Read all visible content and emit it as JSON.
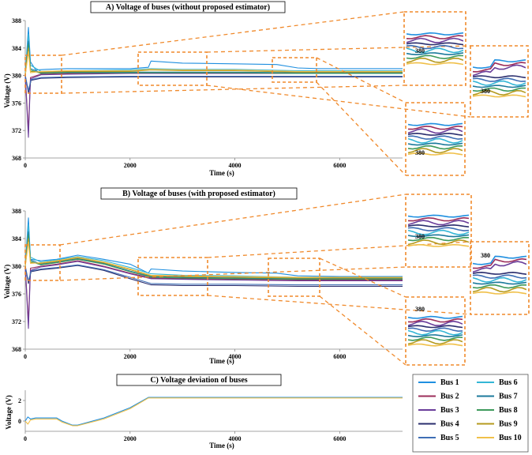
{
  "chart_data": [
    {
      "type": "line",
      "title": "A) Voltage of buses (without proposed estimator)",
      "xlabel": "Time (s)",
      "ylabel": "Voltage (V)",
      "xlim": [
        0,
        7200
      ],
      "ylim": [
        368,
        388
      ],
      "xticks": [
        "0",
        "2000",
        "4000",
        "6000"
      ],
      "yticks": [
        "368",
        "372",
        "376",
        "380",
        "384",
        "388"
      ],
      "inset_labels": [
        "380",
        "380",
        "380"
      ],
      "grid": false,
      "series": [
        {
          "name": "Bus 1",
          "color": "#1f8fe0",
          "x": [
            0,
            60,
            100,
            200,
            400,
            800,
            2000,
            2350,
            2400,
            3000,
            4000,
            4800,
            5200,
            5600,
            7200
          ],
          "y": [
            380,
            387,
            382,
            380.8,
            380.9,
            381,
            381,
            381.2,
            382.1,
            381.8,
            381.7,
            381.6,
            381.1,
            381,
            381
          ]
        },
        {
          "name": "Bus 2",
          "color": "#9b2d5a",
          "x": [
            0,
            60,
            100,
            300,
            800,
            2000,
            3000,
            4000,
            5200,
            7200
          ],
          "y": [
            380,
            372,
            379.7,
            380.2,
            380.3,
            380.4,
            380.4,
            380.4,
            380.4,
            380.4
          ]
        },
        {
          "name": "Bus 3",
          "color": "#6a3d9a",
          "x": [
            0,
            60,
            100,
            300,
            800,
            2000,
            3000,
            4000,
            5200,
            7200
          ],
          "y": [
            380,
            371,
            379.5,
            380.1,
            380.2,
            380.3,
            380.3,
            380.3,
            380.3,
            380.3
          ]
        },
        {
          "name": "Bus 4",
          "color": "#2b2e6e",
          "x": [
            0,
            60,
            110,
            300,
            800,
            2000,
            3000,
            4000,
            5200,
            7200
          ],
          "y": [
            380,
            377.5,
            379.3,
            379.6,
            379.7,
            379.8,
            379.8,
            379.8,
            379.8,
            379.8
          ]
        },
        {
          "name": "Bus 5",
          "color": "#3f6fb5",
          "x": [
            0,
            60,
            110,
            300,
            800,
            2000,
            3000,
            4000,
            5200,
            7200
          ],
          "y": [
            380,
            377.8,
            379.4,
            379.7,
            379.8,
            379.9,
            379.9,
            379.9,
            379.9,
            379.9
          ]
        },
        {
          "name": "Bus 6",
          "color": "#33b6d6",
          "x": [
            0,
            60,
            100,
            300,
            800,
            2000,
            2400,
            3000,
            4000,
            5200,
            7200
          ],
          "y": [
            380,
            386,
            381.5,
            380.6,
            380.7,
            380.8,
            381,
            380.9,
            380.9,
            380.7,
            380.7
          ]
        },
        {
          "name": "Bus 7",
          "color": "#1c7a9b",
          "x": [
            0,
            60,
            100,
            300,
            800,
            2000,
            3000,
            4000,
            5200,
            7200
          ],
          "y": [
            380,
            385,
            381,
            380.4,
            380.5,
            380.5,
            380.5,
            380.5,
            380.4,
            380.4
          ]
        },
        {
          "name": "Bus 8",
          "color": "#3e9a5c",
          "x": [
            0,
            60,
            100,
            300,
            800,
            2000,
            3000,
            4000,
            5200,
            7200
          ],
          "y": [
            380,
            384.5,
            380.8,
            380.3,
            380.4,
            380.4,
            380.4,
            380.4,
            380.3,
            380.3
          ]
        },
        {
          "name": "Bus 9",
          "color": "#b59a1f",
          "x": [
            0,
            60,
            100,
            300,
            800,
            2000,
            2400,
            3000,
            4000,
            5200,
            7200
          ],
          "y": [
            380,
            384,
            380.6,
            380.5,
            380.6,
            380.6,
            380.8,
            380.7,
            380.7,
            380.5,
            380.5
          ]
        },
        {
          "name": "Bus 10",
          "color": "#f0c04a",
          "x": [
            0,
            60,
            100,
            300,
            800,
            2000,
            2400,
            3000,
            4000,
            5200,
            7200
          ],
          "y": [
            380,
            383.5,
            380.4,
            380.6,
            380.7,
            380.7,
            380.9,
            380.8,
            380.8,
            380.6,
            380.6
          ]
        }
      ]
    },
    {
      "type": "line",
      "title": "B) Voltage of buses (with proposed estimator)",
      "xlabel": "Time (s)",
      "ylabel": "Voltage (V)",
      "xlim": [
        0,
        7200
      ],
      "ylim": [
        368,
        388
      ],
      "xticks": [
        "0",
        "2000",
        "4000",
        "6000"
      ],
      "yticks": [
        "368",
        "372",
        "376",
        "380",
        "384",
        "388"
      ],
      "inset_labels": [
        "380",
        "380",
        "380"
      ],
      "grid": false,
      "series": [
        {
          "name": "Bus 1",
          "color": "#1f8fe0",
          "x": [
            0,
            60,
            100,
            300,
            600,
            1000,
            1500,
            2000,
            2350,
            2400,
            3000,
            4000,
            4800,
            5200,
            6000,
            7200
          ],
          "y": [
            380,
            387,
            381,
            380.8,
            381,
            381.6,
            381,
            380.3,
            379,
            379.6,
            379.3,
            379.1,
            379,
            378.6,
            378.5,
            378.5
          ]
        },
        {
          "name": "Bus 2",
          "color": "#9b2d5a",
          "x": [
            0,
            60,
            100,
            300,
            600,
            1000,
            1500,
            2000,
            2400,
            3000,
            4000,
            5200,
            7200
          ],
          "y": [
            380,
            372,
            379.7,
            380,
            380.3,
            380.8,
            380,
            379,
            378.3,
            378.2,
            378.1,
            378,
            378
          ]
        },
        {
          "name": "Bus 3",
          "color": "#6a3d9a",
          "x": [
            0,
            60,
            100,
            300,
            600,
            1000,
            1500,
            2000,
            2400,
            3000,
            4000,
            5200,
            7200
          ],
          "y": [
            380,
            371,
            379.4,
            379.9,
            380.2,
            380.7,
            379.9,
            378.9,
            378.2,
            378.1,
            378,
            377.9,
            377.9
          ]
        },
        {
          "name": "Bus 4",
          "color": "#2b2e6e",
          "x": [
            0,
            60,
            110,
            300,
            600,
            1000,
            1500,
            2000,
            2400,
            3000,
            4000,
            5200,
            7200
          ],
          "y": [
            380,
            377.5,
            379.2,
            379.5,
            379.7,
            380.1,
            379.4,
            378.2,
            377.3,
            377.2,
            377.2,
            377.1,
            377.1
          ]
        },
        {
          "name": "Bus 5",
          "color": "#3f6fb5",
          "x": [
            0,
            60,
            110,
            300,
            600,
            1000,
            1500,
            2000,
            2400,
            3000,
            4000,
            5200,
            7200
          ],
          "y": [
            380,
            377.8,
            379.3,
            379.6,
            379.8,
            380.2,
            379.5,
            378.4,
            377.5,
            377.4,
            377.4,
            377.3,
            377.3
          ]
        },
        {
          "name": "Bus 6",
          "color": "#33b6d6",
          "x": [
            0,
            60,
            100,
            300,
            600,
            1000,
            1500,
            2000,
            2400,
            3000,
            4000,
            5200,
            7200
          ],
          "y": [
            380,
            386,
            381.3,
            380.6,
            380.9,
            381.4,
            380.8,
            379.8,
            378.9,
            378.7,
            378.6,
            378.4,
            378.4
          ]
        },
        {
          "name": "Bus 7",
          "color": "#1c7a9b",
          "x": [
            0,
            60,
            100,
            300,
            600,
            1000,
            1500,
            2000,
            2400,
            3000,
            4000,
            5200,
            7200
          ],
          "y": [
            380,
            385,
            380.9,
            380.3,
            380.6,
            381.1,
            380.4,
            379.3,
            378.5,
            378.4,
            378.3,
            378.2,
            378.2
          ]
        },
        {
          "name": "Bus 8",
          "color": "#3e9a5c",
          "x": [
            0,
            60,
            100,
            300,
            600,
            1000,
            1500,
            2000,
            2400,
            3000,
            4000,
            5200,
            7200
          ],
          "y": [
            380,
            384.5,
            380.7,
            380.2,
            380.5,
            381,
            380.3,
            379.2,
            378.4,
            378.3,
            378.2,
            378.1,
            378.1
          ]
        },
        {
          "name": "Bus 9",
          "color": "#b59a1f",
          "x": [
            0,
            60,
            100,
            300,
            600,
            1000,
            1500,
            2000,
            2400,
            3000,
            4000,
            5200,
            7200
          ],
          "y": [
            380,
            384,
            380.5,
            380.4,
            380.7,
            381.2,
            380.5,
            379.5,
            378.6,
            378.5,
            378.4,
            378.3,
            378.3
          ]
        },
        {
          "name": "Bus 10",
          "color": "#f0c04a",
          "x": [
            0,
            60,
            100,
            300,
            600,
            1000,
            1500,
            2000,
            2400,
            3000,
            4000,
            5200,
            7200
          ],
          "y": [
            380,
            383.5,
            380.4,
            380.5,
            380.8,
            381.3,
            380.6,
            379.6,
            378.7,
            378.6,
            378.5,
            378.4,
            378.4
          ]
        }
      ]
    },
    {
      "type": "line",
      "title": "C) Voltage deviation of buses",
      "xlabel": "Time (s)",
      "ylabel": "Voltage (V)",
      "xlim": [
        0,
        7200
      ],
      "ylim": [
        -1,
        3
      ],
      "xticks": [
        "0",
        "2000",
        "4000",
        "6000"
      ],
      "yticks": [
        "0",
        "2"
      ],
      "grid": false,
      "series": [
        {
          "name": "Bus 1",
          "color": "#1f8fe0",
          "x": [
            0,
            50,
            100,
            200,
            600,
            700,
            900,
            1000,
            1500,
            2000,
            2350,
            3000,
            4000,
            5000,
            7200
          ],
          "y": [
            0,
            0.4,
            0.2,
            0.3,
            0.3,
            0,
            -0.4,
            -0.4,
            0.3,
            1.3,
            2.3,
            2.3,
            2.3,
            2.3,
            2.3
          ]
        },
        {
          "name": "Bus 10",
          "color": "#f0c04a",
          "x": [
            0,
            50,
            100,
            200,
            600,
            700,
            900,
            1000,
            1500,
            2000,
            2350,
            3000,
            4000,
            5000,
            7200
          ],
          "y": [
            0,
            -0.3,
            0.1,
            0.2,
            0.2,
            -0.1,
            -0.45,
            -0.45,
            0.2,
            1.2,
            2.25,
            2.25,
            2.25,
            2.25,
            2.25
          ]
        }
      ]
    }
  ],
  "legend": [
    {
      "name": "Bus 1",
      "color": "#1f8fe0"
    },
    {
      "name": "Bus 6",
      "color": "#33b6d6"
    },
    {
      "name": "Bus 2",
      "color": "#9b2d5a"
    },
    {
      "name": "Bus 7",
      "color": "#1c7a9b"
    },
    {
      "name": "Bus 3",
      "color": "#6a3d9a"
    },
    {
      "name": "Bus 8",
      "color": "#3e9a5c"
    },
    {
      "name": "Bus 4",
      "color": "#2b2e6e"
    },
    {
      "name": "Bus 9",
      "color": "#b59a1f"
    },
    {
      "name": "Bus 5",
      "color": "#3f6fb5"
    },
    {
      "name": "Bus 10",
      "color": "#f0c04a"
    }
  ],
  "highlight_color": "#f08a2c"
}
